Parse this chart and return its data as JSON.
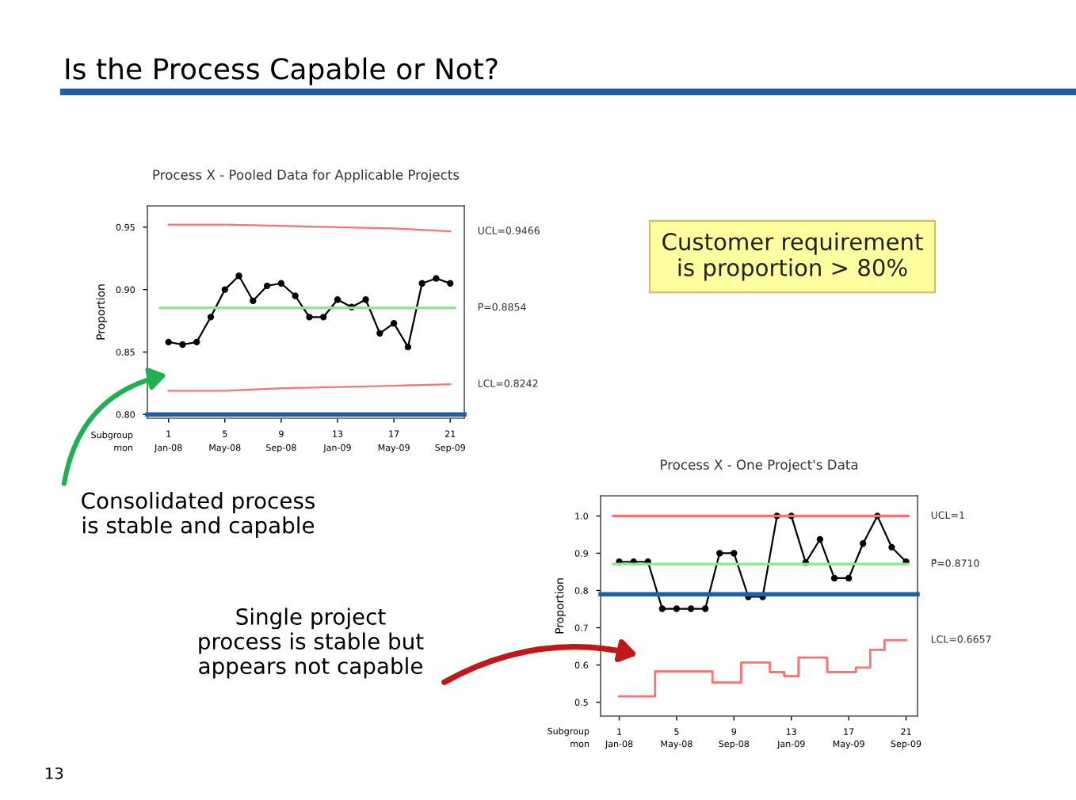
{
  "chart_data": [
    {
      "type": "line",
      "title": "Process X - Pooled Data for Applicable Projects",
      "ylabel": "Proportion",
      "xlim": [
        -0.5,
        22.0
      ],
      "ylim": [
        0.797,
        0.967
      ],
      "xticks": [
        1,
        5,
        9,
        13,
        17,
        21
      ],
      "yticks": [
        {
          "value": 0.8,
          "label": "0.80"
        },
        {
          "value": 0.85,
          "label": "0.85"
        },
        {
          "value": 0.9,
          "label": "0.90"
        },
        {
          "value": 0.95,
          "label": "0.95"
        }
      ],
      "series": [
        {
          "color": "#000000",
          "marker": "circle",
          "x": [
            1,
            2,
            3,
            4,
            5,
            6,
            7,
            8,
            9,
            10,
            11,
            12,
            13,
            14,
            15,
            16,
            17,
            18,
            19,
            20,
            21
          ],
          "values": [
            0.858,
            0.856,
            0.858,
            0.878,
            0.9,
            0.911,
            0.891,
            0.903,
            0.905,
            0.895,
            0.878,
            0.878,
            0.892,
            0.886,
            0.892,
            0.865,
            0.873,
            0.854,
            0.905,
            0.909,
            0.905
          ]
        },
        {
          "name": "UCL=0.9466",
          "color": "#ff7070",
          "x": [
            1,
            5,
            9,
            13,
            17,
            21
          ],
          "values": [
            0.952,
            0.952,
            0.951,
            0.95,
            0.949,
            0.9466
          ]
        },
        {
          "name": "LCL=0.8242",
          "color": "#ff7070",
          "x": [
            1,
            5,
            9,
            13,
            17,
            21
          ],
          "values": [
            0.819,
            0.819,
            0.821,
            0.822,
            0.823,
            0.8242
          ]
        }
      ],
      "ref_lines": [
        {
          "axis": "y",
          "value": 0.8854,
          "label": "P̄=0.8854",
          "color": "#80ee80"
        },
        {
          "axis": "y",
          "value": 0.8,
          "label": null,
          "color": "#1f5fa8"
        }
      ],
      "annotations": [
        "Is the Process Capable or Not?",
        "Customer requirement\nis proportion > 80%",
        "Consolidated process\nis stable and capable",
        "13",
        "Subgroup",
        "mon",
        "Jan-08",
        "May-08",
        "Sep-08",
        "Jan-09",
        "May-09",
        "Sep-09"
      ]
    },
    {
      "type": "line",
      "title": "Process X - One Project's Data",
      "ylabel": "Proportion",
      "xlim": [
        -0.3,
        21.8
      ],
      "ylim": [
        0.463,
        1.054
      ],
      "xticks": [
        1,
        5,
        9,
        13,
        17,
        21
      ],
      "yticks": [
        0.5,
        0.6,
        0.7,
        0.8,
        0.9,
        {
          "value": 1.0,
          "label": "1.0"
        }
      ],
      "series": [
        {
          "color": "#000000",
          "marker": "circle",
          "x": [
            1,
            2,
            3,
            4,
            5,
            6,
            7,
            8,
            9,
            10,
            11,
            12,
            13,
            14,
            15,
            16,
            17,
            18,
            19,
            20,
            21
          ],
          "values": [
            0.877,
            0.877,
            0.877,
            0.751,
            0.751,
            0.751,
            0.751,
            0.9,
            0.9,
            0.783,
            0.783,
            1.0,
            1.0,
            0.875,
            0.937,
            0.833,
            0.833,
            0.926,
            1.0,
            0.916,
            0.877
          ]
        },
        {
          "type": "step",
          "name": "LCL=0.6657",
          "color": "#ff7070",
          "x": [
            1,
            2,
            3,
            4,
            5,
            6,
            7,
            8,
            9,
            10,
            11,
            12,
            13,
            14,
            15,
            16,
            17,
            18,
            19,
            20,
            21
          ],
          "values": [
            0.516,
            0.516,
            0.516,
            0.583,
            0.583,
            0.583,
            0.583,
            0.553,
            0.553,
            0.607,
            0.607,
            0.581,
            0.57,
            0.62,
            0.62,
            0.581,
            0.581,
            0.593,
            0.641,
            0.667,
            0.667
          ]
        }
      ],
      "ref_lines": [
        {
          "axis": "y",
          "value": 1.0,
          "label": "UCL=1",
          "color": "#ff7070"
        },
        {
          "axis": "y",
          "value": 0.871,
          "label": "P̄=0.8710",
          "color": "#80ee80"
        },
        {
          "axis": "y",
          "value": 0.79,
          "label": null,
          "color": "#1f5fa8"
        }
      ],
      "annotations": [
        "Single project\nprocess is stable but\nappears not capable",
        "Subgroup",
        "mon",
        "Jan-08",
        "May-08",
        "Sep-08",
        "Jan-09",
        "May-09",
        "Sep-09"
      ]
    }
  ]
}
